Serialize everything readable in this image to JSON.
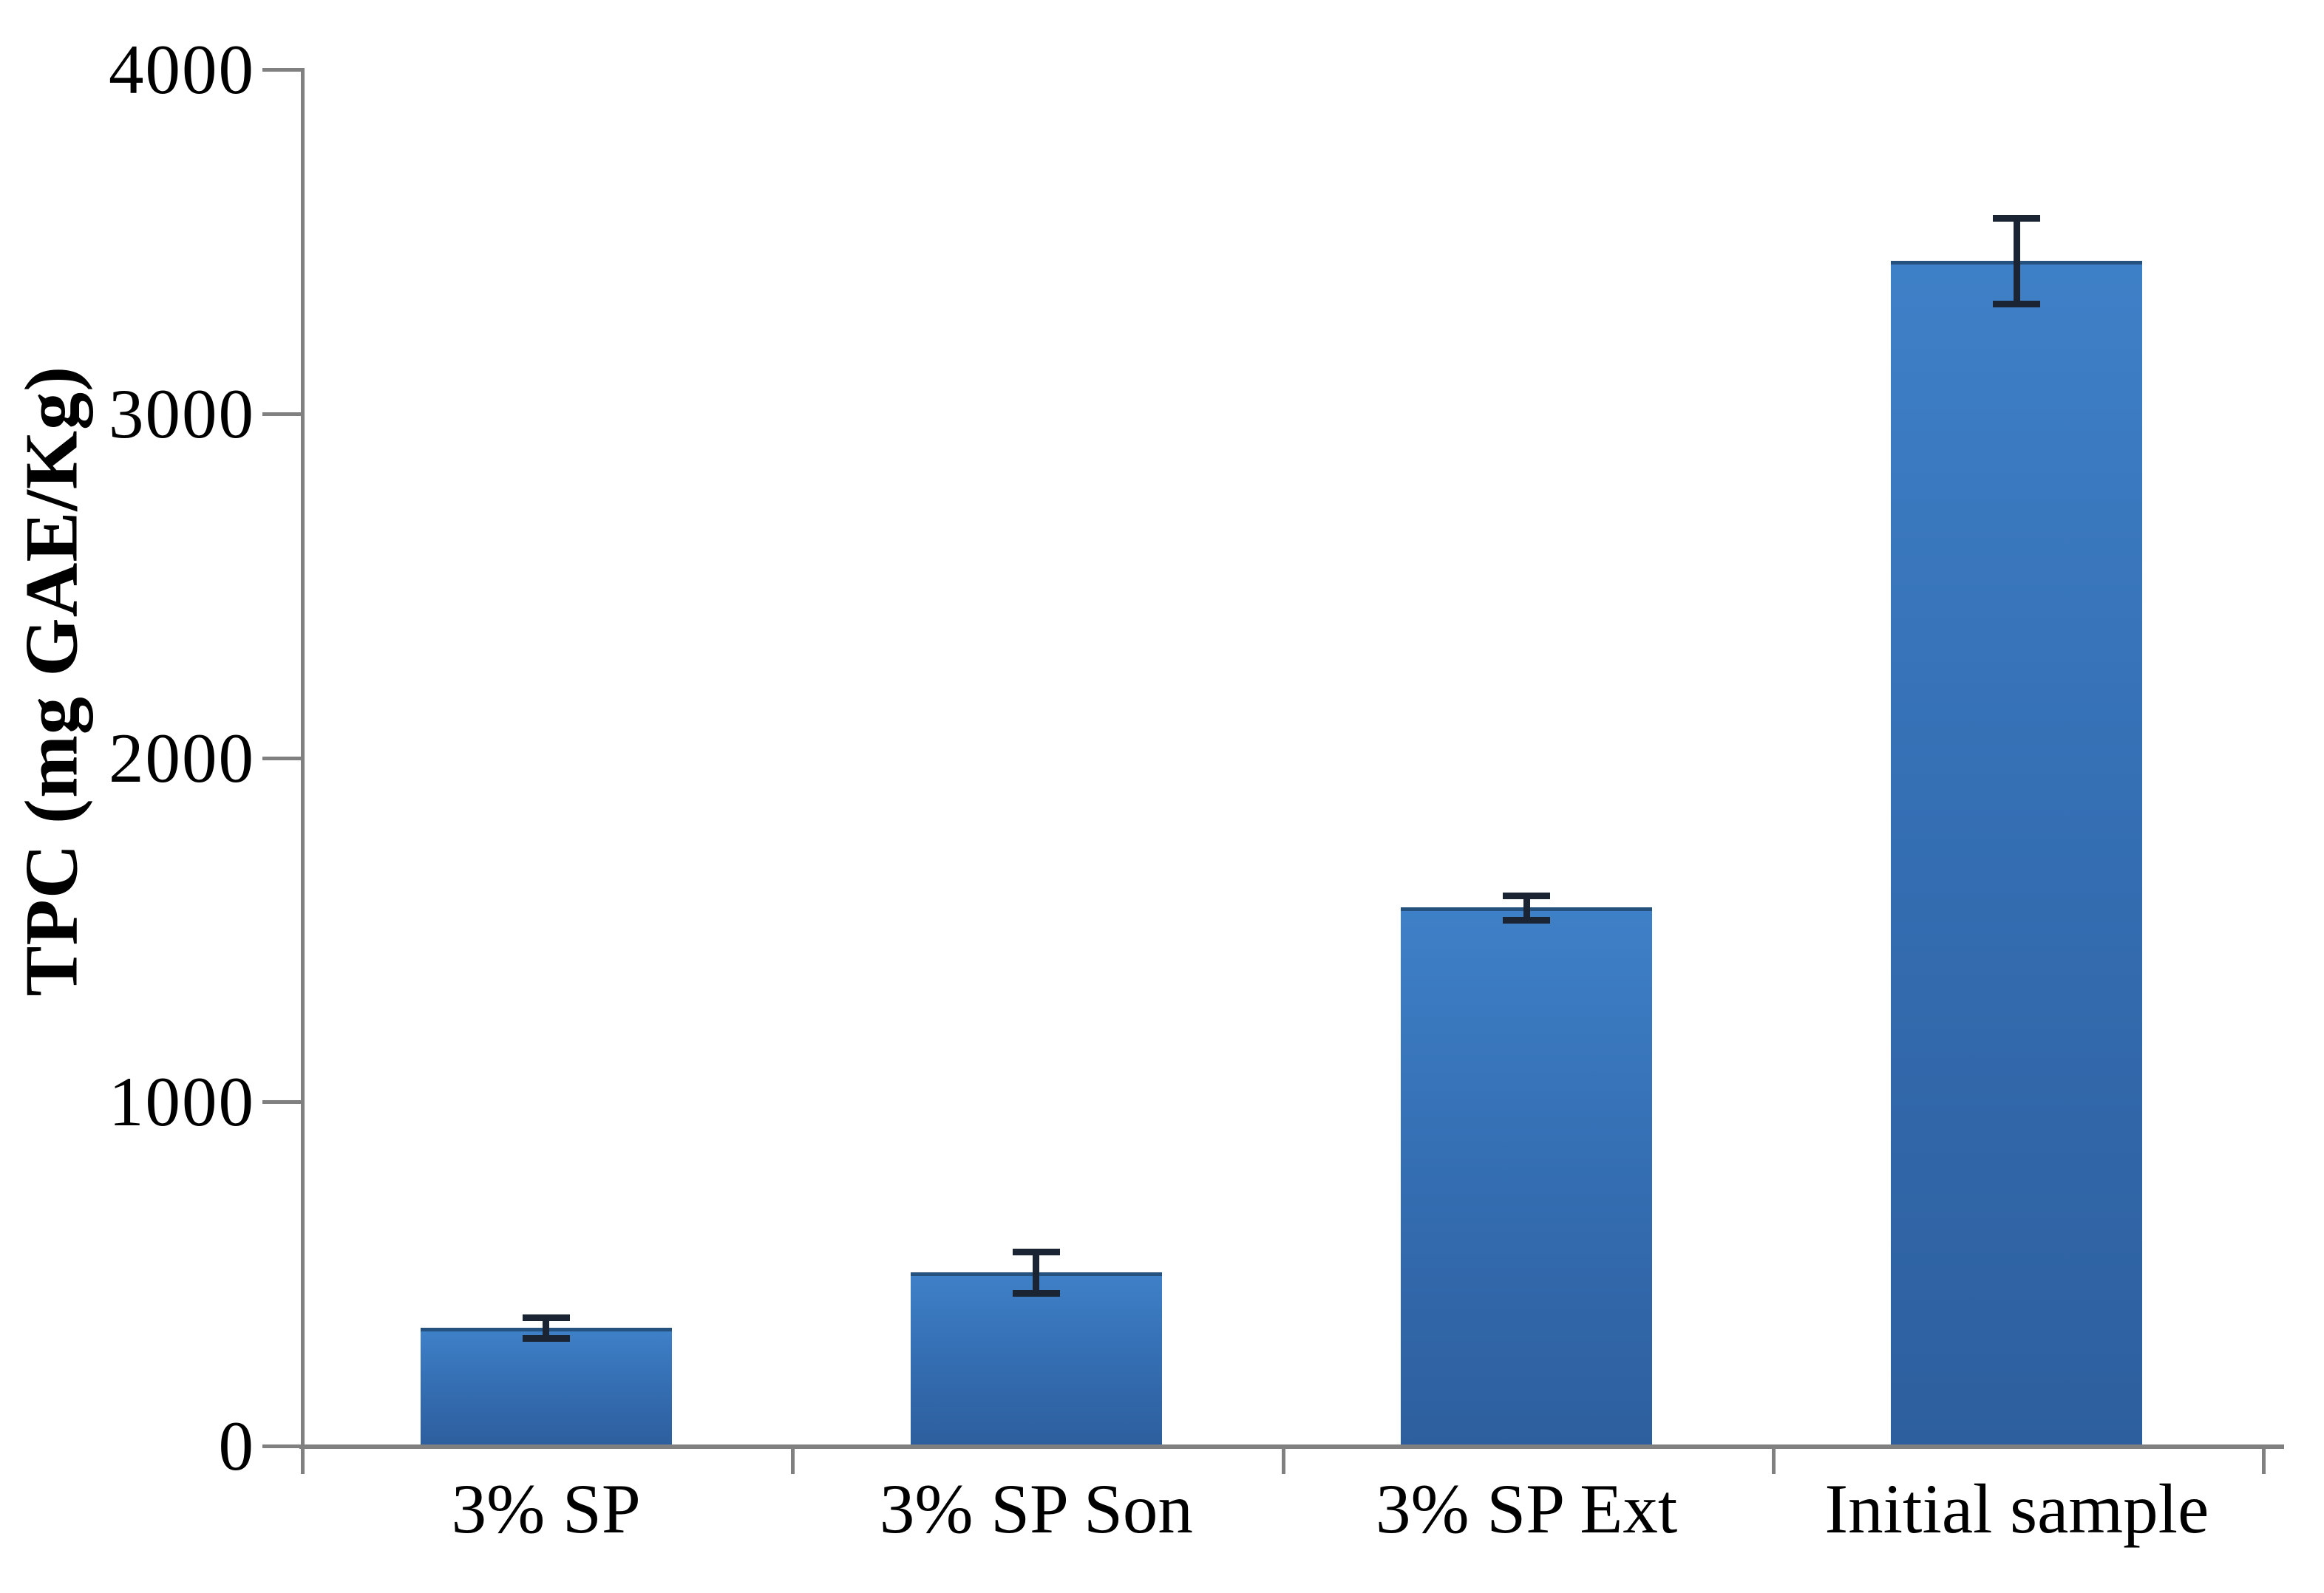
{
  "chart_data": {
    "type": "bar",
    "title": "",
    "ylabel": "TPC (mg GAE/Kg)",
    "xlabel": "",
    "categories": [
      "3% SP",
      "3% SP Son",
      "3% SP Ext",
      "Initial sample"
    ],
    "values": [
      340,
      500,
      1560,
      3440
    ],
    "errors": [
      30,
      60,
      35,
      125
    ],
    "ylim": [
      0,
      4000
    ],
    "yticks": [
      0,
      1000,
      2000,
      3000,
      4000
    ],
    "grid": false,
    "legend_position": "none",
    "bar_color_top": "#3E80C7",
    "bar_color_bottom": "#2D5F9E",
    "bar_edge_color": "#24517E",
    "axis_color": "#808080",
    "error_bar_color": "#1A2433",
    "text_color": "#000000"
  }
}
